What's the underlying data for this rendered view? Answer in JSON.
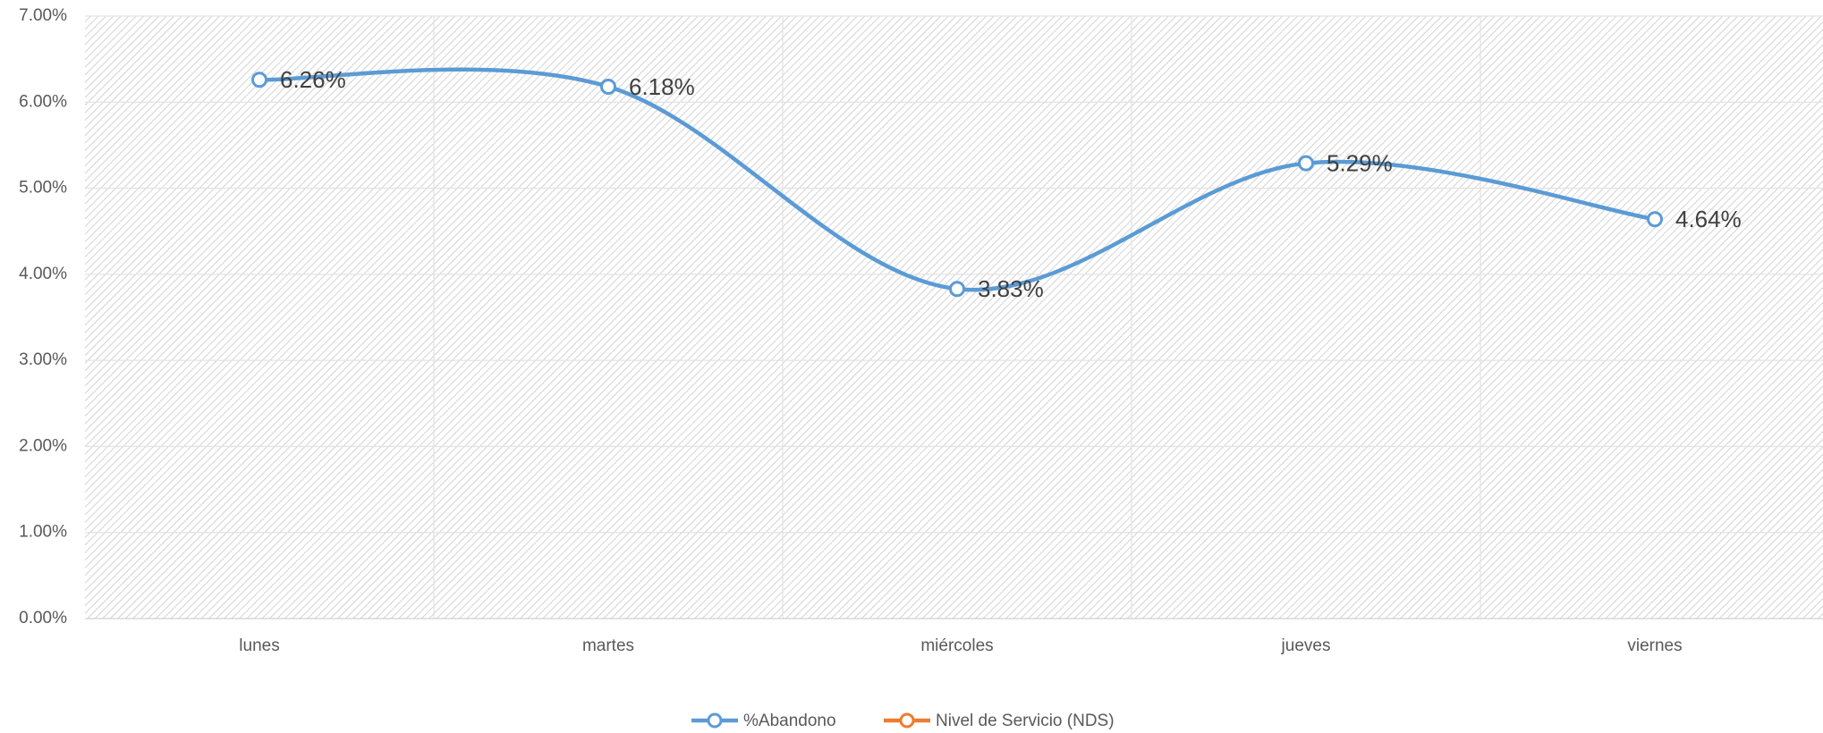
{
  "chart_data": {
    "type": "line",
    "categories": [
      "lunes",
      "martes",
      "miércoles",
      "jueves",
      "viernes"
    ],
    "series": [
      {
        "name": "%Abandono",
        "color": "#5b9bd5",
        "values": [
          6.26,
          6.18,
          3.83,
          5.29,
          4.64
        ],
        "value_labels": [
          "6.26%",
          "6.18%",
          "3.83%",
          "5.29%",
          "4.64%"
        ]
      },
      {
        "name": "Nivel de Servicio (NDS)",
        "color": "#ed7d31",
        "values": [
          null,
          null,
          null,
          null,
          null
        ]
      }
    ],
    "ylim": [
      0,
      7
    ],
    "yticks": [
      {
        "value": 0,
        "label": "0.00%"
      },
      {
        "value": 1,
        "label": "1.00%"
      },
      {
        "value": 2,
        "label": "2.00%"
      },
      {
        "value": 3,
        "label": "3.00%"
      },
      {
        "value": 4,
        "label": "4.00%"
      },
      {
        "value": 5,
        "label": "5.00%"
      },
      {
        "value": 6,
        "label": "6.00%"
      },
      {
        "value": 7,
        "label": "7.00%"
      }
    ],
    "grid": true,
    "legend": "bottom",
    "smooth": true
  }
}
